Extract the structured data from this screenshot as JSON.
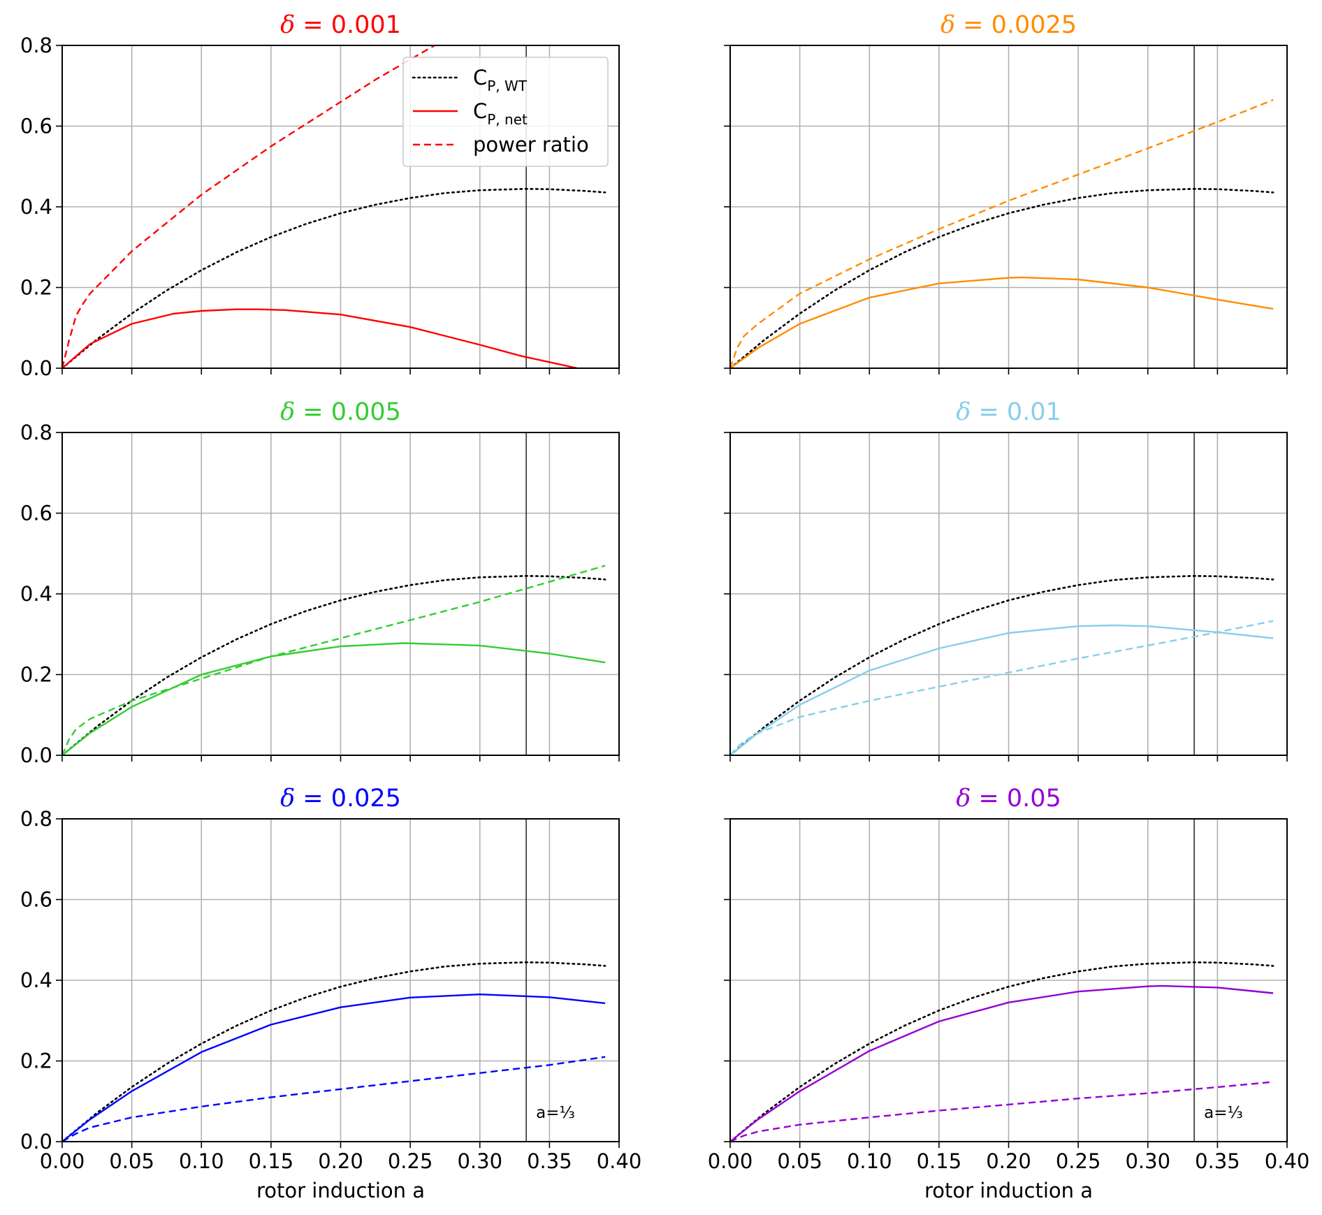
{
  "figure": {
    "xlabel": "rotor induction a",
    "legend": {
      "placement": "top-right of first panel",
      "entries": [
        {
          "label_main": "C",
          "label_sub": "P, WT",
          "style": "dotted",
          "color": "#000000"
        },
        {
          "label_main": "C",
          "label_sub": "P, net",
          "style": "solid",
          "color": "#ff0000"
        },
        {
          "label_main": "power ratio",
          "label_sub": "",
          "style": "dashed",
          "color": "#ff0000"
        }
      ]
    },
    "vline_annotation": "a=⅓"
  },
  "chart_data": [
    {
      "type": "line",
      "title": "δ = 0.001",
      "color": "#ff0000",
      "xlim": [
        0,
        0.4
      ],
      "ylim": [
        0,
        0.8
      ],
      "xticks": [
        "0.00",
        "0.05",
        "0.10",
        "0.15",
        "0.20",
        "0.25",
        "0.30",
        "0.35",
        "0.40"
      ],
      "yticks": [
        "0.0",
        "0.2",
        "0.4",
        "0.6",
        "0.8"
      ],
      "grid": true,
      "vline_x": 0.3333,
      "series": [
        {
          "name": "power ratio",
          "style": "dashed",
          "x": [
            0,
            0.005,
            0.01,
            0.015,
            0.02,
            0.03,
            0.05,
            0.075,
            0.1,
            0.125,
            0.15,
            0.175,
            0.2,
            0.225,
            0.25,
            0.275
          ],
          "y": [
            0,
            0.07,
            0.13,
            0.16,
            0.185,
            0.22,
            0.29,
            0.36,
            0.43,
            0.49,
            0.55,
            0.605,
            0.66,
            0.715,
            0.765,
            0.815
          ]
        },
        {
          "name": "C_P, net",
          "style": "solid",
          "x": [
            0,
            0.02,
            0.05,
            0.08,
            0.1,
            0.125,
            0.14,
            0.16,
            0.2,
            0.25,
            0.3,
            0.33,
            0.35,
            0.37
          ],
          "y": [
            0,
            0.06,
            0.11,
            0.135,
            0.142,
            0.146,
            0.146,
            0.144,
            0.133,
            0.102,
            0.058,
            0.03,
            0.015,
            0
          ]
        }
      ]
    },
    {
      "type": "line",
      "title": "δ = 0.0025",
      "color": "#ff8c00",
      "xlim": [
        0,
        0.4
      ],
      "ylim": [
        0,
        0.8
      ],
      "xticks": [
        "0.00",
        "0.05",
        "0.10",
        "0.15",
        "0.20",
        "0.25",
        "0.30",
        "0.35",
        "0.40"
      ],
      "yticks": [
        "0.0",
        "0.2",
        "0.4",
        "0.6",
        "0.8"
      ],
      "grid": true,
      "vline_x": 0.3333,
      "series": [
        {
          "name": "power ratio",
          "style": "dashed",
          "x": [
            0,
            0.005,
            0.01,
            0.02,
            0.05,
            0.1,
            0.15,
            0.2,
            0.25,
            0.3,
            0.35,
            0.39
          ],
          "y": [
            0,
            0.05,
            0.08,
            0.11,
            0.185,
            0.27,
            0.345,
            0.415,
            0.48,
            0.545,
            0.61,
            0.665
          ]
        },
        {
          "name": "C_P, net",
          "style": "solid",
          "x": [
            0,
            0.02,
            0.05,
            0.1,
            0.15,
            0.2,
            0.21,
            0.25,
            0.3,
            0.35,
            0.39
          ],
          "y": [
            0,
            0.05,
            0.11,
            0.175,
            0.21,
            0.224,
            0.225,
            0.22,
            0.2,
            0.17,
            0.147
          ]
        }
      ]
    },
    {
      "type": "line",
      "title": "δ = 0.005",
      "color": "#32cd32",
      "xlim": [
        0,
        0.4
      ],
      "ylim": [
        0,
        0.8
      ],
      "xticks": [
        "0.00",
        "0.05",
        "0.10",
        "0.15",
        "0.20",
        "0.25",
        "0.30",
        "0.35",
        "0.40"
      ],
      "yticks": [
        "0.0",
        "0.2",
        "0.4",
        "0.6",
        "0.8"
      ],
      "grid": true,
      "vline_x": 0.3333,
      "series": [
        {
          "name": "power ratio",
          "style": "dashed",
          "x": [
            0,
            0.005,
            0.01,
            0.02,
            0.05,
            0.1,
            0.15,
            0.2,
            0.25,
            0.3,
            0.35,
            0.39
          ],
          "y": [
            0,
            0.04,
            0.065,
            0.09,
            0.135,
            0.19,
            0.245,
            0.29,
            0.335,
            0.38,
            0.43,
            0.47
          ]
        },
        {
          "name": "C_P, net",
          "style": "solid",
          "x": [
            0,
            0.02,
            0.05,
            0.1,
            0.15,
            0.2,
            0.245,
            0.3,
            0.35,
            0.39
          ],
          "y": [
            0,
            0.055,
            0.12,
            0.2,
            0.245,
            0.27,
            0.278,
            0.272,
            0.252,
            0.23
          ]
        }
      ]
    },
    {
      "type": "line",
      "title": "δ = 0.01",
      "color": "#87ceeb",
      "xlim": [
        0,
        0.4
      ],
      "ylim": [
        0,
        0.8
      ],
      "xticks": [
        "0.00",
        "0.05",
        "0.10",
        "0.15",
        "0.20",
        "0.25",
        "0.30",
        "0.35",
        "0.40"
      ],
      "yticks": [
        "0.0",
        "0.2",
        "0.4",
        "0.6",
        "0.8"
      ],
      "grid": true,
      "vline_x": 0.3333,
      "series": [
        {
          "name": "power ratio",
          "style": "dashed",
          "x": [
            0,
            0.005,
            0.01,
            0.02,
            0.05,
            0.1,
            0.15,
            0.2,
            0.25,
            0.3,
            0.35,
            0.39
          ],
          "y": [
            0,
            0.02,
            0.035,
            0.055,
            0.095,
            0.135,
            0.17,
            0.205,
            0.24,
            0.272,
            0.305,
            0.333
          ]
        },
        {
          "name": "C_P, net",
          "style": "solid",
          "x": [
            0,
            0.02,
            0.05,
            0.1,
            0.15,
            0.2,
            0.25,
            0.275,
            0.3,
            0.35,
            0.39
          ],
          "y": [
            0,
            0.055,
            0.125,
            0.21,
            0.265,
            0.303,
            0.32,
            0.322,
            0.32,
            0.305,
            0.29
          ]
        }
      ]
    },
    {
      "type": "line",
      "title": "δ = 0.025",
      "color": "#0000ff",
      "xlim": [
        0,
        0.4
      ],
      "ylim": [
        0,
        0.8
      ],
      "xticks": [
        "0.00",
        "0.05",
        "0.10",
        "0.15",
        "0.20",
        "0.25",
        "0.30",
        "0.35",
        "0.40"
      ],
      "yticks": [
        "0.0",
        "0.2",
        "0.4",
        "0.6",
        "0.8"
      ],
      "grid": true,
      "vline_x": 0.3333,
      "series": [
        {
          "name": "power ratio",
          "style": "dashed",
          "x": [
            0,
            0.005,
            0.01,
            0.02,
            0.05,
            0.1,
            0.15,
            0.2,
            0.25,
            0.3,
            0.35,
            0.39
          ],
          "y": [
            0,
            0.01,
            0.02,
            0.035,
            0.06,
            0.087,
            0.11,
            0.13,
            0.15,
            0.17,
            0.19,
            0.21
          ]
        },
        {
          "name": "C_P, net",
          "style": "solid",
          "x": [
            0,
            0.02,
            0.05,
            0.1,
            0.15,
            0.2,
            0.25,
            0.3,
            0.35,
            0.39
          ],
          "y": [
            0,
            0.055,
            0.125,
            0.222,
            0.29,
            0.333,
            0.357,
            0.365,
            0.358,
            0.343
          ]
        }
      ]
    },
    {
      "type": "line",
      "title": "δ = 0.05",
      "color": "#9400d3",
      "xlim": [
        0,
        0.4
      ],
      "ylim": [
        0,
        0.8
      ],
      "xticks": [
        "0.00",
        "0.05",
        "0.10",
        "0.15",
        "0.20",
        "0.25",
        "0.30",
        "0.35",
        "0.40"
      ],
      "yticks": [
        "0.0",
        "0.2",
        "0.4",
        "0.6",
        "0.8"
      ],
      "grid": true,
      "vline_x": 0.3333,
      "series": [
        {
          "name": "power ratio",
          "style": "dashed",
          "x": [
            0,
            0.005,
            0.01,
            0.02,
            0.05,
            0.1,
            0.15,
            0.2,
            0.25,
            0.3,
            0.35,
            0.39
          ],
          "y": [
            0,
            0.008,
            0.015,
            0.025,
            0.042,
            0.06,
            0.077,
            0.092,
            0.107,
            0.12,
            0.135,
            0.148
          ]
        },
        {
          "name": "C_P, net",
          "style": "solid",
          "x": [
            0,
            0.02,
            0.05,
            0.1,
            0.15,
            0.2,
            0.25,
            0.3,
            0.31,
            0.35,
            0.39
          ],
          "y": [
            0,
            0.055,
            0.125,
            0.225,
            0.298,
            0.345,
            0.372,
            0.385,
            0.386,
            0.382,
            0.368
          ]
        }
      ]
    }
  ],
  "reference_curve": {
    "name": "C_P, WT",
    "style": "dotted",
    "color": "#000000",
    "x": [
      0,
      0.025,
      0.05,
      0.075,
      0.1,
      0.125,
      0.15,
      0.175,
      0.2,
      0.225,
      0.25,
      0.275,
      0.3,
      0.3333,
      0.35,
      0.375,
      0.39
    ],
    "y": [
      0,
      0.0951,
      0.1805,
      0.2567,
      0.324,
      0.3828,
      0.4335,
      0.4765,
      0.512,
      0.5403,
      0.5625,
      0.5789,
      0.588,
      0.5926,
      0.5915,
      0.5859,
      0.5809
    ],
    "y_scale": 0.75
  }
}
